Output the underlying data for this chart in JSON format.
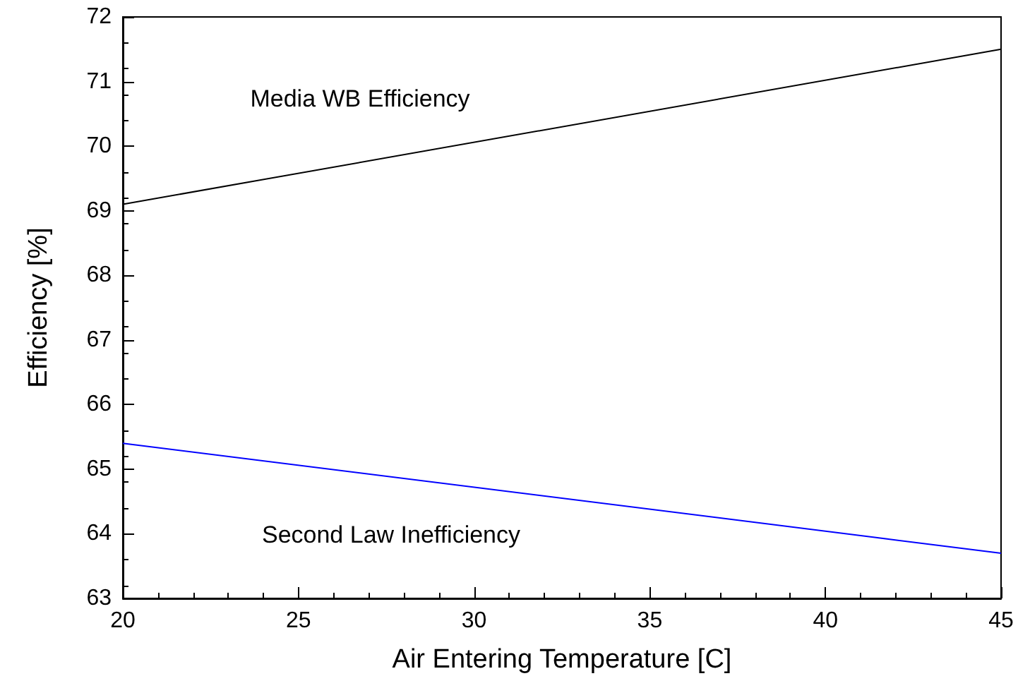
{
  "chart_data": {
    "type": "line",
    "xlabel": "Air Entering Temperature [C]",
    "ylabel": "Efficiency [%]",
    "x": [
      20,
      45
    ],
    "series": [
      {
        "color": "#000000",
        "values": [
          69.1,
          71.5
        ]
      },
      {
        "color": "#0000ff",
        "values": [
          65.4,
          63.7
        ]
      }
    ],
    "xlim": [
      20,
      45
    ],
    "xticks": [
      20,
      25,
      30,
      35,
      40,
      45
    ],
    "ylim": [
      63,
      72
    ],
    "yticks": [
      63,
      64,
      65,
      66,
      67,
      68,
      69,
      70,
      71,
      72
    ],
    "grid": false,
    "marker": "none",
    "line_style": "solid",
    "annotations": [
      "Media WB Efficiency",
      "Second Law Inefficiency"
    ]
  }
}
